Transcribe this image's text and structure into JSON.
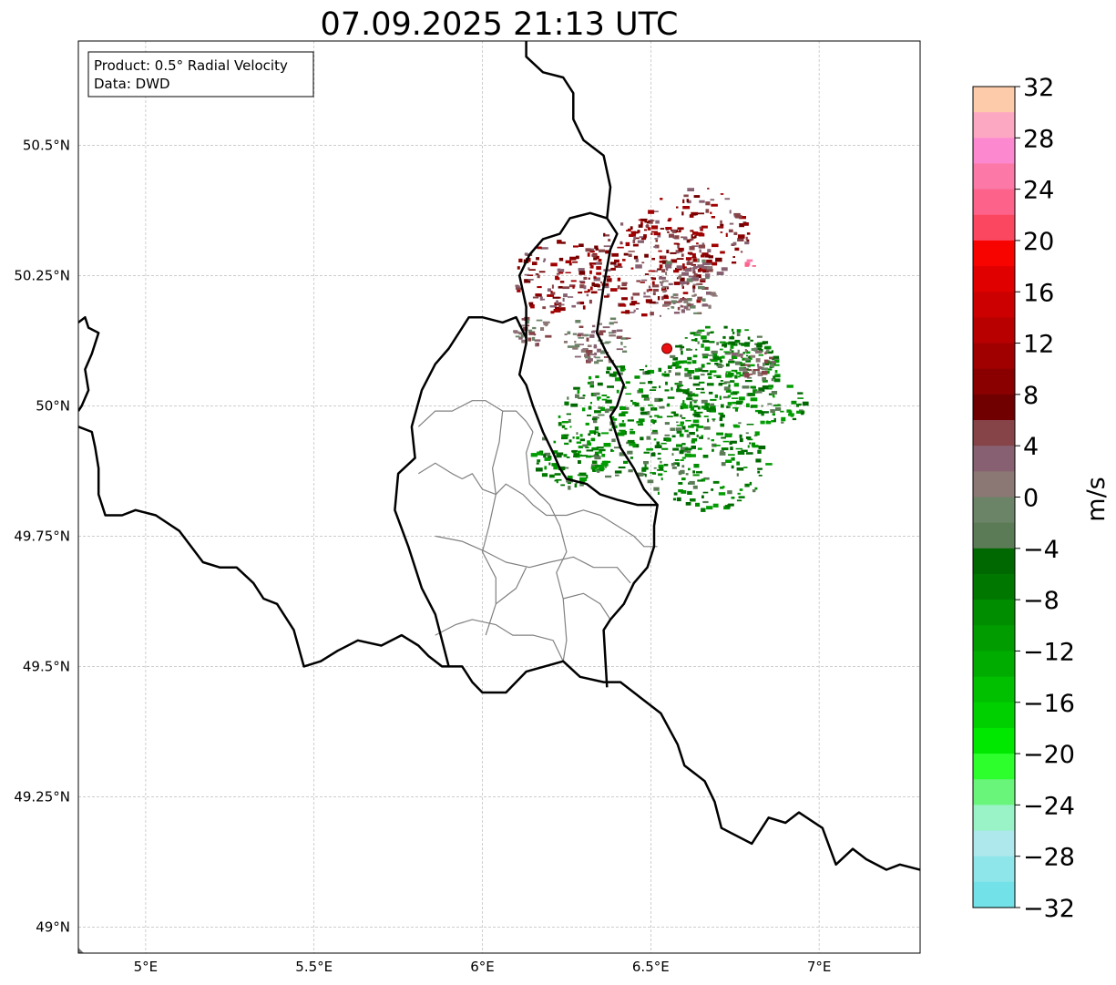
{
  "title": "07.09.2025 21:13 UTC",
  "info_box": {
    "product": "Product: 0.5° Radial Velocity",
    "data": "Data: DWD"
  },
  "map": {
    "lon_range": [
      4.8,
      7.3
    ],
    "lat_range": [
      48.95,
      50.7
    ],
    "lon_ticks": [
      {
        "value": 5.0,
        "label": "5°E"
      },
      {
        "value": 5.5,
        "label": "5.5°E"
      },
      {
        "value": 6.0,
        "label": "6°E"
      },
      {
        "value": 6.5,
        "label": "6.5°E"
      },
      {
        "value": 7.0,
        "label": "7°E"
      }
    ],
    "lat_ticks": [
      {
        "value": 50.5,
        "label": "50.5°N"
      },
      {
        "value": 50.25,
        "label": "50.25°N"
      },
      {
        "value": 50.0,
        "label": "50°N"
      },
      {
        "value": 49.75,
        "label": "49.75°N"
      },
      {
        "value": 49.5,
        "label": "49.5°N"
      },
      {
        "value": 49.25,
        "label": "49.25°N"
      },
      {
        "value": 49.0,
        "label": "49°N"
      }
    ],
    "gridlines": true,
    "radar_site": {
      "lon": 6.548,
      "lat": 50.11
    }
  },
  "borders": {
    "national": [
      [
        [
          4.8,
          50.16
        ],
        [
          4.82,
          50.17
        ],
        [
          4.83,
          50.15
        ],
        [
          4.86,
          50.14
        ],
        [
          4.84,
          50.1
        ],
        [
          4.82,
          50.07
        ],
        [
          4.83,
          50.03
        ],
        [
          4.81,
          50.0
        ],
        [
          4.8,
          49.99
        ]
      ],
      [
        [
          4.8,
          49.96
        ],
        [
          4.84,
          49.95
        ],
        [
          4.85,
          49.92
        ],
        [
          4.86,
          49.88
        ],
        [
          4.86,
          49.83
        ],
        [
          4.88,
          49.79
        ],
        [
          4.93,
          49.79
        ],
        [
          4.97,
          49.8
        ],
        [
          5.03,
          49.79
        ],
        [
          5.1,
          49.76
        ],
        [
          5.17,
          49.7
        ],
        [
          5.22,
          49.69
        ],
        [
          5.27,
          49.69
        ],
        [
          5.32,
          49.66
        ],
        [
          5.35,
          49.63
        ],
        [
          5.39,
          49.62
        ],
        [
          5.44,
          49.57
        ],
        [
          5.47,
          49.5
        ],
        [
          5.52,
          49.51
        ],
        [
          5.57,
          49.53
        ],
        [
          5.63,
          49.55
        ],
        [
          5.7,
          49.54
        ],
        [
          5.76,
          49.56
        ],
        [
          5.81,
          49.54
        ],
        [
          5.84,
          49.52
        ],
        [
          5.88,
          49.5
        ],
        [
          5.94,
          49.5
        ],
        [
          5.97,
          49.47
        ],
        [
          6.0,
          49.45
        ],
        [
          6.07,
          49.45
        ],
        [
          6.13,
          49.49
        ],
        [
          6.24,
          49.51
        ],
        [
          6.29,
          49.48
        ],
        [
          6.36,
          49.47
        ],
        [
          6.41,
          49.47
        ],
        [
          6.47,
          49.44
        ],
        [
          6.53,
          49.41
        ],
        [
          6.58,
          49.35
        ],
        [
          6.6,
          49.31
        ],
        [
          6.66,
          49.28
        ],
        [
          6.69,
          49.24
        ],
        [
          6.71,
          49.19
        ],
        [
          6.8,
          49.16
        ],
        [
          6.85,
          49.21
        ],
        [
          6.9,
          49.2
        ],
        [
          6.94,
          49.22
        ],
        [
          7.01,
          49.19
        ],
        [
          7.05,
          49.12
        ],
        [
          7.1,
          49.15
        ],
        [
          7.14,
          49.13
        ],
        [
          7.2,
          49.11
        ],
        [
          7.24,
          49.12
        ],
        [
          7.3,
          49.11
        ]
      ],
      [
        [
          6.13,
          50.13
        ],
        [
          6.13,
          50.12
        ],
        [
          6.12,
          50.09
        ],
        [
          6.11,
          50.06
        ],
        [
          6.13,
          50.04
        ],
        [
          6.15,
          50.0
        ],
        [
          6.18,
          49.95
        ],
        [
          6.21,
          49.91
        ],
        [
          6.23,
          49.88
        ],
        [
          6.25,
          49.86
        ],
        [
          6.31,
          49.85
        ],
        [
          6.35,
          49.83
        ],
        [
          6.4,
          49.82
        ],
        [
          6.46,
          49.81
        ],
        [
          6.52,
          49.81
        ],
        [
          6.51,
          49.77
        ],
        [
          6.51,
          49.73
        ],
        [
          6.49,
          49.69
        ],
        [
          6.45,
          49.66
        ],
        [
          6.42,
          49.62
        ],
        [
          6.38,
          49.59
        ],
        [
          6.36,
          49.57
        ],
        [
          6.37,
          49.46
        ]
      ],
      [
        [
          6.13,
          50.13
        ],
        [
          6.13,
          50.15
        ],
        [
          6.13,
          50.19
        ],
        [
          6.11,
          50.25
        ],
        [
          6.14,
          50.29
        ],
        [
          6.18,
          50.32
        ],
        [
          6.23,
          50.33
        ],
        [
          6.26,
          50.36
        ],
        [
          6.32,
          50.37
        ],
        [
          6.37,
          50.36
        ],
        [
          6.4,
          50.33
        ],
        [
          6.38,
          50.3
        ],
        [
          6.36,
          50.23
        ],
        [
          6.34,
          50.14
        ],
        [
          6.37,
          50.1
        ],
        [
          6.4,
          50.07
        ],
        [
          6.42,
          50.04
        ],
        [
          6.4,
          50.0
        ],
        [
          6.38,
          49.98
        ],
        [
          6.41,
          49.92
        ],
        [
          6.45,
          49.88
        ],
        [
          6.48,
          49.84
        ],
        [
          6.52,
          49.81
        ]
      ],
      [
        [
          6.37,
          50.36
        ],
        [
          6.38,
          50.42
        ],
        [
          6.36,
          50.48
        ],
        [
          6.3,
          50.51
        ],
        [
          6.27,
          50.55
        ],
        [
          6.27,
          50.6
        ],
        [
          6.24,
          50.63
        ],
        [
          6.18,
          50.64
        ],
        [
          6.13,
          50.67
        ],
        [
          6.13,
          50.7
        ]
      ],
      [
        [
          6.13,
          50.13
        ],
        [
          6.1,
          50.17
        ],
        [
          6.06,
          50.16
        ],
        [
          6.0,
          50.17
        ],
        [
          5.96,
          50.17
        ],
        [
          5.9,
          50.11
        ],
        [
          5.86,
          50.08
        ],
        [
          5.82,
          50.03
        ],
        [
          5.79,
          49.96
        ],
        [
          5.8,
          49.9
        ],
        [
          5.75,
          49.87
        ],
        [
          5.74,
          49.8
        ],
        [
          5.78,
          49.73
        ],
        [
          5.82,
          49.65
        ],
        [
          5.86,
          49.6
        ],
        [
          5.88,
          49.55
        ],
        [
          5.9,
          49.5
        ]
      ]
    ],
    "regional": [
      [
        [
          5.81,
          49.96
        ],
        [
          5.86,
          49.99
        ],
        [
          5.91,
          49.99
        ],
        [
          5.97,
          50.01
        ],
        [
          6.01,
          50.01
        ],
        [
          6.06,
          49.99
        ],
        [
          6.1,
          49.99
        ],
        [
          6.13,
          49.97
        ],
        [
          6.15,
          49.95
        ]
      ],
      [
        [
          5.81,
          49.87
        ],
        [
          5.86,
          49.89
        ],
        [
          5.91,
          49.87
        ],
        [
          5.94,
          49.86
        ],
        [
          5.97,
          49.87
        ],
        [
          6.0,
          49.84
        ],
        [
          6.04,
          49.83
        ],
        [
          6.07,
          49.85
        ],
        [
          6.12,
          49.83
        ],
        [
          6.15,
          49.81
        ],
        [
          6.19,
          49.79
        ],
        [
          6.25,
          49.79
        ],
        [
          6.3,
          49.8
        ],
        [
          6.35,
          49.79
        ],
        [
          6.4,
          49.77
        ],
        [
          6.45,
          49.75
        ],
        [
          6.48,
          49.73
        ],
        [
          6.52,
          49.73
        ]
      ],
      [
        [
          6.06,
          49.99
        ],
        [
          6.05,
          49.93
        ],
        [
          6.03,
          49.88
        ],
        [
          6.04,
          49.83
        ],
        [
          6.02,
          49.77
        ],
        [
          6.0,
          49.72
        ],
        [
          6.04,
          49.67
        ],
        [
          6.04,
          49.62
        ],
        [
          6.01,
          49.56
        ]
      ],
      [
        [
          6.15,
          49.95
        ],
        [
          6.13,
          49.91
        ],
        [
          6.14,
          49.85
        ],
        [
          6.2,
          49.81
        ],
        [
          6.23,
          49.77
        ],
        [
          6.25,
          49.72
        ],
        [
          6.22,
          49.68
        ],
        [
          6.24,
          49.63
        ],
        [
          6.25,
          49.55
        ],
        [
          6.24,
          49.51
        ]
      ],
      [
        [
          5.86,
          49.75
        ],
        [
          5.94,
          49.74
        ],
        [
          6.01,
          49.72
        ],
        [
          6.07,
          49.7
        ],
        [
          6.14,
          49.69
        ],
        [
          6.2,
          49.7
        ],
        [
          6.27,
          49.71
        ],
        [
          6.33,
          49.69
        ],
        [
          6.4,
          49.69
        ],
        [
          6.44,
          49.66
        ]
      ],
      [
        [
          5.86,
          49.56
        ],
        [
          5.92,
          49.58
        ],
        [
          5.97,
          49.59
        ],
        [
          6.04,
          49.58
        ],
        [
          6.09,
          49.56
        ],
        [
          6.15,
          49.56
        ],
        [
          6.21,
          49.55
        ],
        [
          6.24,
          49.51
        ]
      ],
      [
        [
          6.13,
          49.69
        ],
        [
          6.1,
          49.65
        ],
        [
          6.06,
          49.63
        ],
        [
          6.04,
          49.62
        ]
      ],
      [
        [
          6.24,
          49.63
        ],
        [
          6.3,
          49.64
        ],
        [
          6.35,
          49.62
        ],
        [
          6.38,
          49.59
        ]
      ]
    ]
  },
  "colorbar": {
    "label": "m/s",
    "min": -32,
    "max": 32,
    "ticks": [
      32,
      28,
      24,
      20,
      16,
      12,
      8,
      4,
      0,
      -4,
      -8,
      -12,
      -16,
      -20,
      -24,
      -28,
      -32
    ],
    "tick_labels": [
      "32",
      "28",
      "24",
      "20",
      "16",
      "12",
      "8",
      "4",
      "0",
      "−4",
      "−8",
      "−12",
      "−16",
      "−20",
      "−24",
      "−28",
      "−32"
    ],
    "colors_top_to_bottom": [
      "#fdcbaa",
      "#fda8c3",
      "#fc88d0",
      "#fb78a7",
      "#fc628a",
      "#fc4760",
      "#f70300",
      "#e00000",
      "#cc0000",
      "#b80000",
      "#a10000",
      "#8a0000",
      "#700000",
      "#864448",
      "#876171",
      "#8b7774",
      "#6b8367",
      "#5b7b56",
      "#006800",
      "#007800",
      "#008e00",
      "#009c00",
      "#00ac00",
      "#00c000",
      "#00d000",
      "#00e800",
      "#2cff2c",
      "#68f57a",
      "#99f3c6",
      "#aee8ec",
      "#8ee6ea",
      "#73e1e8"
    ]
  },
  "velocity_echo": {
    "inbound_area_color": "#00870a",
    "outbound_area_color": "#8a0000",
    "mixed_area_color": "#866060"
  }
}
